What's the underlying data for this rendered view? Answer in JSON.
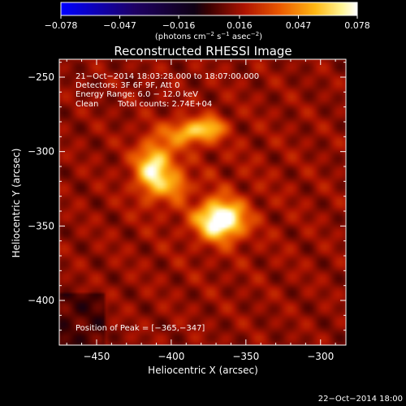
{
  "chart_data": {
    "type": "heatmap",
    "title": "Reconstructed RHESSI Image",
    "xlabel": "Heliocentric X (arcsec)",
    "ylabel": "Heliocentric Y (arcsec)",
    "xlim": [
      -475,
      -283
    ],
    "ylim": [
      -430,
      -238
    ],
    "x_ticks": [
      -450,
      -400,
      -350,
      -300
    ],
    "y_ticks": [
      -250,
      -300,
      -350,
      -400
    ],
    "x_tick_labels": [
      "−450",
      "−400",
      "−350",
      "−300"
    ],
    "y_tick_labels": [
      "−250",
      "−300",
      "−350",
      "−400"
    ],
    "colorbar": {
      "min": -0.078,
      "max": 0.078,
      "tick_values": [
        -0.078,
        -0.047,
        -0.016,
        0.016,
        0.047,
        0.078
      ],
      "tick_labels": [
        "−0.078",
        "−0.047",
        "−0.016",
        "0.016",
        "0.047",
        "0.078"
      ],
      "unit_base": "(photons cm",
      "unit_sup1": "−2",
      "unit_mid": " s",
      "unit_sup2": "−1",
      "unit_mid2": " asec",
      "unit_sup3": "−2",
      "unit_end": ")"
    },
    "sources": [
      {
        "x": -367,
        "y": -346,
        "peak": 0.078,
        "sigma_x": 11,
        "sigma_y": 9
      },
      {
        "x": -411,
        "y": -312,
        "peak": 0.06,
        "sigma_x": 9,
        "sigma_y": 13
      },
      {
        "x": -387,
        "y": -287,
        "peak": 0.045,
        "sigma_x": 11,
        "sigma_y": 6
      },
      {
        "x": -372,
        "y": -283,
        "peak": 0.028,
        "sigma_x": 6,
        "sigma_y": 5
      },
      {
        "x": -395,
        "y": -323,
        "peak": 0.028,
        "sigma_x": 5,
        "sigma_y": 6
      }
    ],
    "background_level": 0.012,
    "annotations": {
      "time": "21−Oct−2014 18:03:28.000 to 18:07:00.000",
      "detectors": "Detectors: 3F 6F 9F, Att 0",
      "energy": "Energy Range: 6.0 − 12.0 keV",
      "method": "Clean",
      "counts": "Total counts: 2.74E+04",
      "peak_position": "Position of Peak = [−365,−347]"
    }
  },
  "footer_date": "22−Oct−2014 18:00"
}
